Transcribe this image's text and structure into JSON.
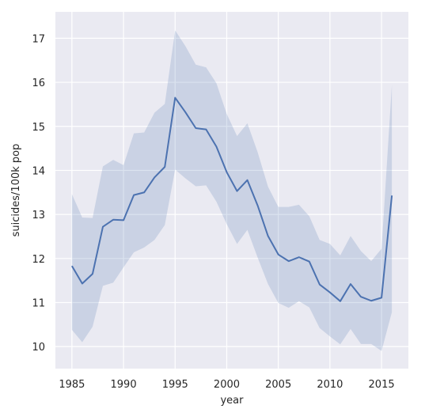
{
  "chart_data": {
    "type": "line",
    "xlabel": "year",
    "ylabel": "suicides/100k pop",
    "xlim": [
      1983.4,
      2017.6
    ],
    "ylim": [
      9.5,
      17.6
    ],
    "x_ticks": [
      1985,
      1990,
      1995,
      2000,
      2005,
      2010,
      2015
    ],
    "y_ticks": [
      10,
      11,
      12,
      13,
      14,
      15,
      16,
      17
    ],
    "grid": true,
    "legend": "none",
    "colors": {
      "background": "#eaeaf2",
      "grid": "#ffffff",
      "line": "#4c72b0",
      "band": "#4c72b0"
    },
    "series": [
      {
        "x": [
          1985,
          1986,
          1987,
          1988,
          1989,
          1990,
          1991,
          1992,
          1993,
          1994,
          1995,
          1996,
          1997,
          1998,
          1999,
          2000,
          2001,
          2002,
          2003,
          2004,
          2005,
          2006,
          2007,
          2008,
          2009,
          2010,
          2011,
          2012,
          2013,
          2014,
          2015,
          2016
        ],
        "y": [
          11.83,
          11.43,
          11.65,
          12.72,
          12.88,
          12.87,
          13.44,
          13.5,
          13.84,
          14.08,
          15.65,
          15.32,
          14.96,
          14.93,
          14.54,
          13.96,
          13.53,
          13.78,
          13.2,
          12.51,
          12.09,
          11.94,
          12.03,
          11.93,
          11.41,
          11.23,
          11.03,
          11.42,
          11.13,
          11.04,
          11.11,
          13.43
        ],
        "ci_low": [
          10.38,
          10.1,
          10.45,
          11.38,
          11.45,
          11.8,
          12.14,
          12.25,
          12.42,
          12.76,
          14.02,
          13.82,
          13.64,
          13.66,
          13.29,
          12.78,
          12.33,
          12.65,
          12.02,
          11.42,
          10.99,
          10.88,
          11.03,
          10.89,
          10.42,
          10.23,
          10.05,
          10.4,
          10.06,
          10.06,
          9.9,
          10.78
        ],
        "ci_high": [
          13.46,
          12.93,
          12.92,
          14.09,
          14.24,
          14.12,
          14.84,
          14.86,
          15.31,
          15.51,
          17.18,
          16.82,
          16.4,
          16.34,
          15.98,
          15.28,
          14.78,
          15.07,
          14.41,
          13.63,
          13.17,
          13.17,
          13.22,
          12.96,
          12.42,
          12.33,
          12.07,
          12.51,
          12.17,
          11.94,
          12.22,
          15.94
        ]
      }
    ]
  }
}
